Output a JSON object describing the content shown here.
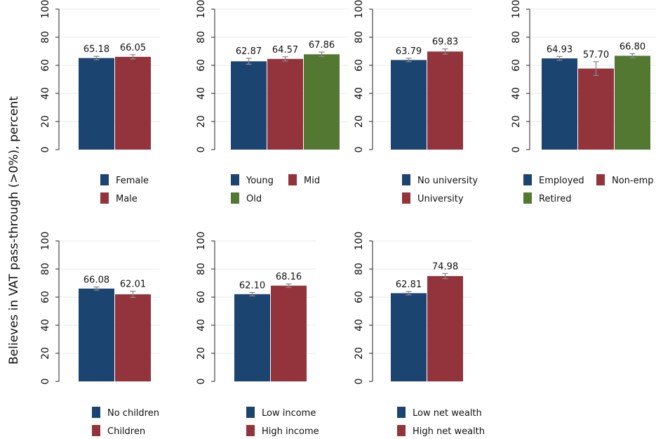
{
  "ylabel": "Believes in VAT pass-through (>0%), percent",
  "chart_data": [
    {
      "type": "bar",
      "categories": [
        "Female",
        "Male"
      ],
      "values": [
        65.18,
        66.05
      ],
      "value_labels": [
        "65.18",
        "66.05"
      ],
      "ci": [
        [
          64.0,
          66.4
        ],
        [
          64.5,
          67.6
        ]
      ],
      "colors": [
        "#1b4470",
        "#93343c"
      ],
      "ylim": [
        0,
        100
      ],
      "yticks": [
        0,
        20,
        40,
        60,
        80,
        100
      ],
      "grid": true,
      "legend_placement": "bottom"
    },
    {
      "type": "bar",
      "categories": [
        "Young",
        "Mid",
        "Old"
      ],
      "values": [
        62.87,
        64.57,
        67.86
      ],
      "value_labels": [
        "62.87",
        "64.57",
        "67.86"
      ],
      "ci": [
        [
          60.8,
          65.0
        ],
        [
          63.0,
          66.1
        ],
        [
          66.3,
          69.4
        ]
      ],
      "colors": [
        "#1b4470",
        "#93343c",
        "#527832"
      ],
      "ylim": [
        0,
        100
      ],
      "yticks": [
        0,
        20,
        40,
        60,
        80,
        100
      ],
      "grid": true,
      "legend_placement": "bottom"
    },
    {
      "type": "bar",
      "categories": [
        "No university",
        "University"
      ],
      "values": [
        63.79,
        69.83
      ],
      "value_labels": [
        "63.79",
        "69.83"
      ],
      "ci": [
        [
          62.6,
          65.0
        ],
        [
          68.0,
          71.7
        ]
      ],
      "colors": [
        "#1b4470",
        "#93343c"
      ],
      "ylim": [
        0,
        100
      ],
      "yticks": [
        0,
        20,
        40,
        60,
        80,
        100
      ],
      "grid": true,
      "legend_placement": "bottom"
    },
    {
      "type": "bar",
      "categories": [
        "Employed",
        "Non-emp",
        "Retired"
      ],
      "values": [
        64.93,
        57.7,
        66.8
      ],
      "value_labels": [
        "64.93",
        "57.70",
        "66.80"
      ],
      "ci": [
        [
          63.6,
          66.3
        ],
        [
          52.8,
          62.6
        ],
        [
          65.3,
          68.3
        ]
      ],
      "colors": [
        "#1b4470",
        "#93343c",
        "#527832"
      ],
      "ylim": [
        0,
        100
      ],
      "yticks": [
        0,
        20,
        40,
        60,
        80,
        100
      ],
      "grid": true,
      "legend_placement": "bottom"
    },
    {
      "type": "bar",
      "categories": [
        "No children",
        "Children"
      ],
      "values": [
        66.08,
        62.01
      ],
      "value_labels": [
        "66.08",
        "62.01"
      ],
      "ci": [
        [
          65.0,
          67.2
        ],
        [
          59.8,
          64.2
        ]
      ],
      "colors": [
        "#1b4470",
        "#93343c"
      ],
      "ylim": [
        0,
        100
      ],
      "yticks": [
        0,
        20,
        40,
        60,
        80,
        100
      ],
      "grid": true,
      "legend_placement": "bottom"
    },
    {
      "type": "bar",
      "categories": [
        "Low income",
        "High income"
      ],
      "values": [
        62.1,
        68.16
      ],
      "value_labels": [
        "62.10",
        "68.16"
      ],
      "ci": [
        [
          60.9,
          63.3
        ],
        [
          67.0,
          69.4
        ]
      ],
      "colors": [
        "#1b4470",
        "#93343c"
      ],
      "ylim": [
        0,
        100
      ],
      "yticks": [
        0,
        20,
        40,
        60,
        80,
        100
      ],
      "grid": true,
      "legend_placement": "bottom"
    },
    {
      "type": "bar",
      "categories": [
        "Low net wealth",
        "High net wealth"
      ],
      "values": [
        62.81,
        74.98
      ],
      "value_labels": [
        "62.81",
        "74.98"
      ],
      "ci": [
        [
          61.6,
          64.0
        ],
        [
          73.2,
          76.8
        ]
      ],
      "colors": [
        "#1b4470",
        "#93343c"
      ],
      "ylim": [
        0,
        100
      ],
      "yticks": [
        0,
        20,
        40,
        60,
        80,
        100
      ],
      "grid": true,
      "legend_placement": "bottom"
    }
  ]
}
